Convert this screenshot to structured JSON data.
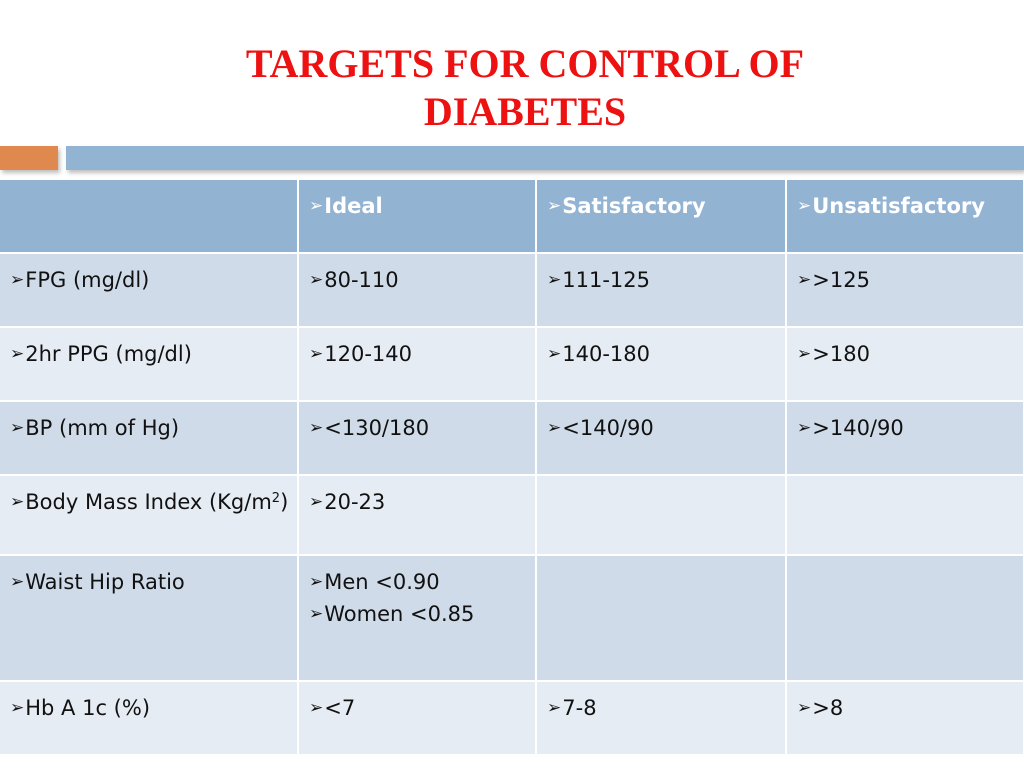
{
  "slide": {
    "title_line1": "TARGETS FOR CONTROL OF",
    "title_line2": "DIABETES",
    "bullet": "➢"
  },
  "colors": {
    "title": "#ee1111",
    "header_bg": "#93b3d3",
    "row_dark": "#cfdbe8",
    "row_light": "#e6ecf3",
    "accent_orange": "#e0894f"
  },
  "table": {
    "headers": [
      "",
      "Ideal",
      "Satisfactory",
      "Unsatisfactory"
    ],
    "rows": [
      {
        "label": "FPG (mg/dl)",
        "ideal": [
          "80-110"
        ],
        "satisfactory": "111-125",
        "unsatisfactory": ">125"
      },
      {
        "label": "2hr PPG (mg/dl)",
        "ideal": [
          "120-140"
        ],
        "satisfactory": "140-180",
        "unsatisfactory": ">180"
      },
      {
        "label": "BP (mm of Hg)",
        "ideal": [
          "<130/180"
        ],
        "satisfactory": "<140/90",
        "unsatisfactory": ">140/90"
      },
      {
        "label": "Body Mass Index (Kg/m",
        "label_sup": "2",
        "label_tail": ")",
        "ideal": [
          "20-23"
        ],
        "satisfactory": "",
        "unsatisfactory": ""
      },
      {
        "label": "Waist Hip Ratio",
        "ideal": [
          "Men <0.90",
          "Women <0.85"
        ],
        "satisfactory": "",
        "unsatisfactory": ""
      },
      {
        "label": "Hb A 1c (%)",
        "ideal": [
          "<7"
        ],
        "satisfactory": "7-8",
        "unsatisfactory": ">8"
      }
    ]
  }
}
